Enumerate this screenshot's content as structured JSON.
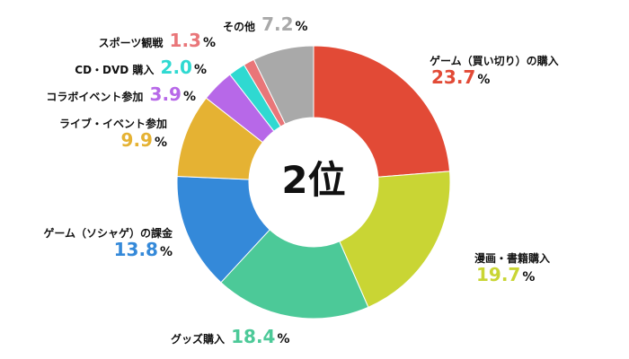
{
  "chart_data": {
    "type": "pie",
    "center_label": "2位",
    "unit": "%",
    "slices": [
      {
        "label": "ゲーム（買い切り）の購入",
        "value": 23.7,
        "display": "23.7",
        "color": "#e24a36"
      },
      {
        "label": "漫画・書籍購入",
        "value": 19.7,
        "display": "19.7",
        "color": "#c9d534"
      },
      {
        "label": "グッズ購入",
        "value": 18.4,
        "display": "18.4",
        "color": "#4cc998"
      },
      {
        "label": "ゲーム（ソシャゲ）の課金",
        "value": 13.8,
        "display": "13.8",
        "color": "#3489d9"
      },
      {
        "label": "ライブ・イベント参加",
        "value": 9.9,
        "display": "9.9",
        "color": "#e5b233"
      },
      {
        "label": "コラボイベント参加",
        "value": 3.9,
        "display": "3.9",
        "color": "#b768e8"
      },
      {
        "label": "CD・DVD 購入",
        "value": 2.0,
        "display": "2.0",
        "color": "#2fd9d1"
      },
      {
        "label": "スポーツ観戦",
        "value": 1.3,
        "display": "1.3",
        "color": "#e97679"
      },
      {
        "label": "その他",
        "value": 7.2,
        "display": "7.2",
        "color": "#a9a9a9"
      }
    ]
  }
}
